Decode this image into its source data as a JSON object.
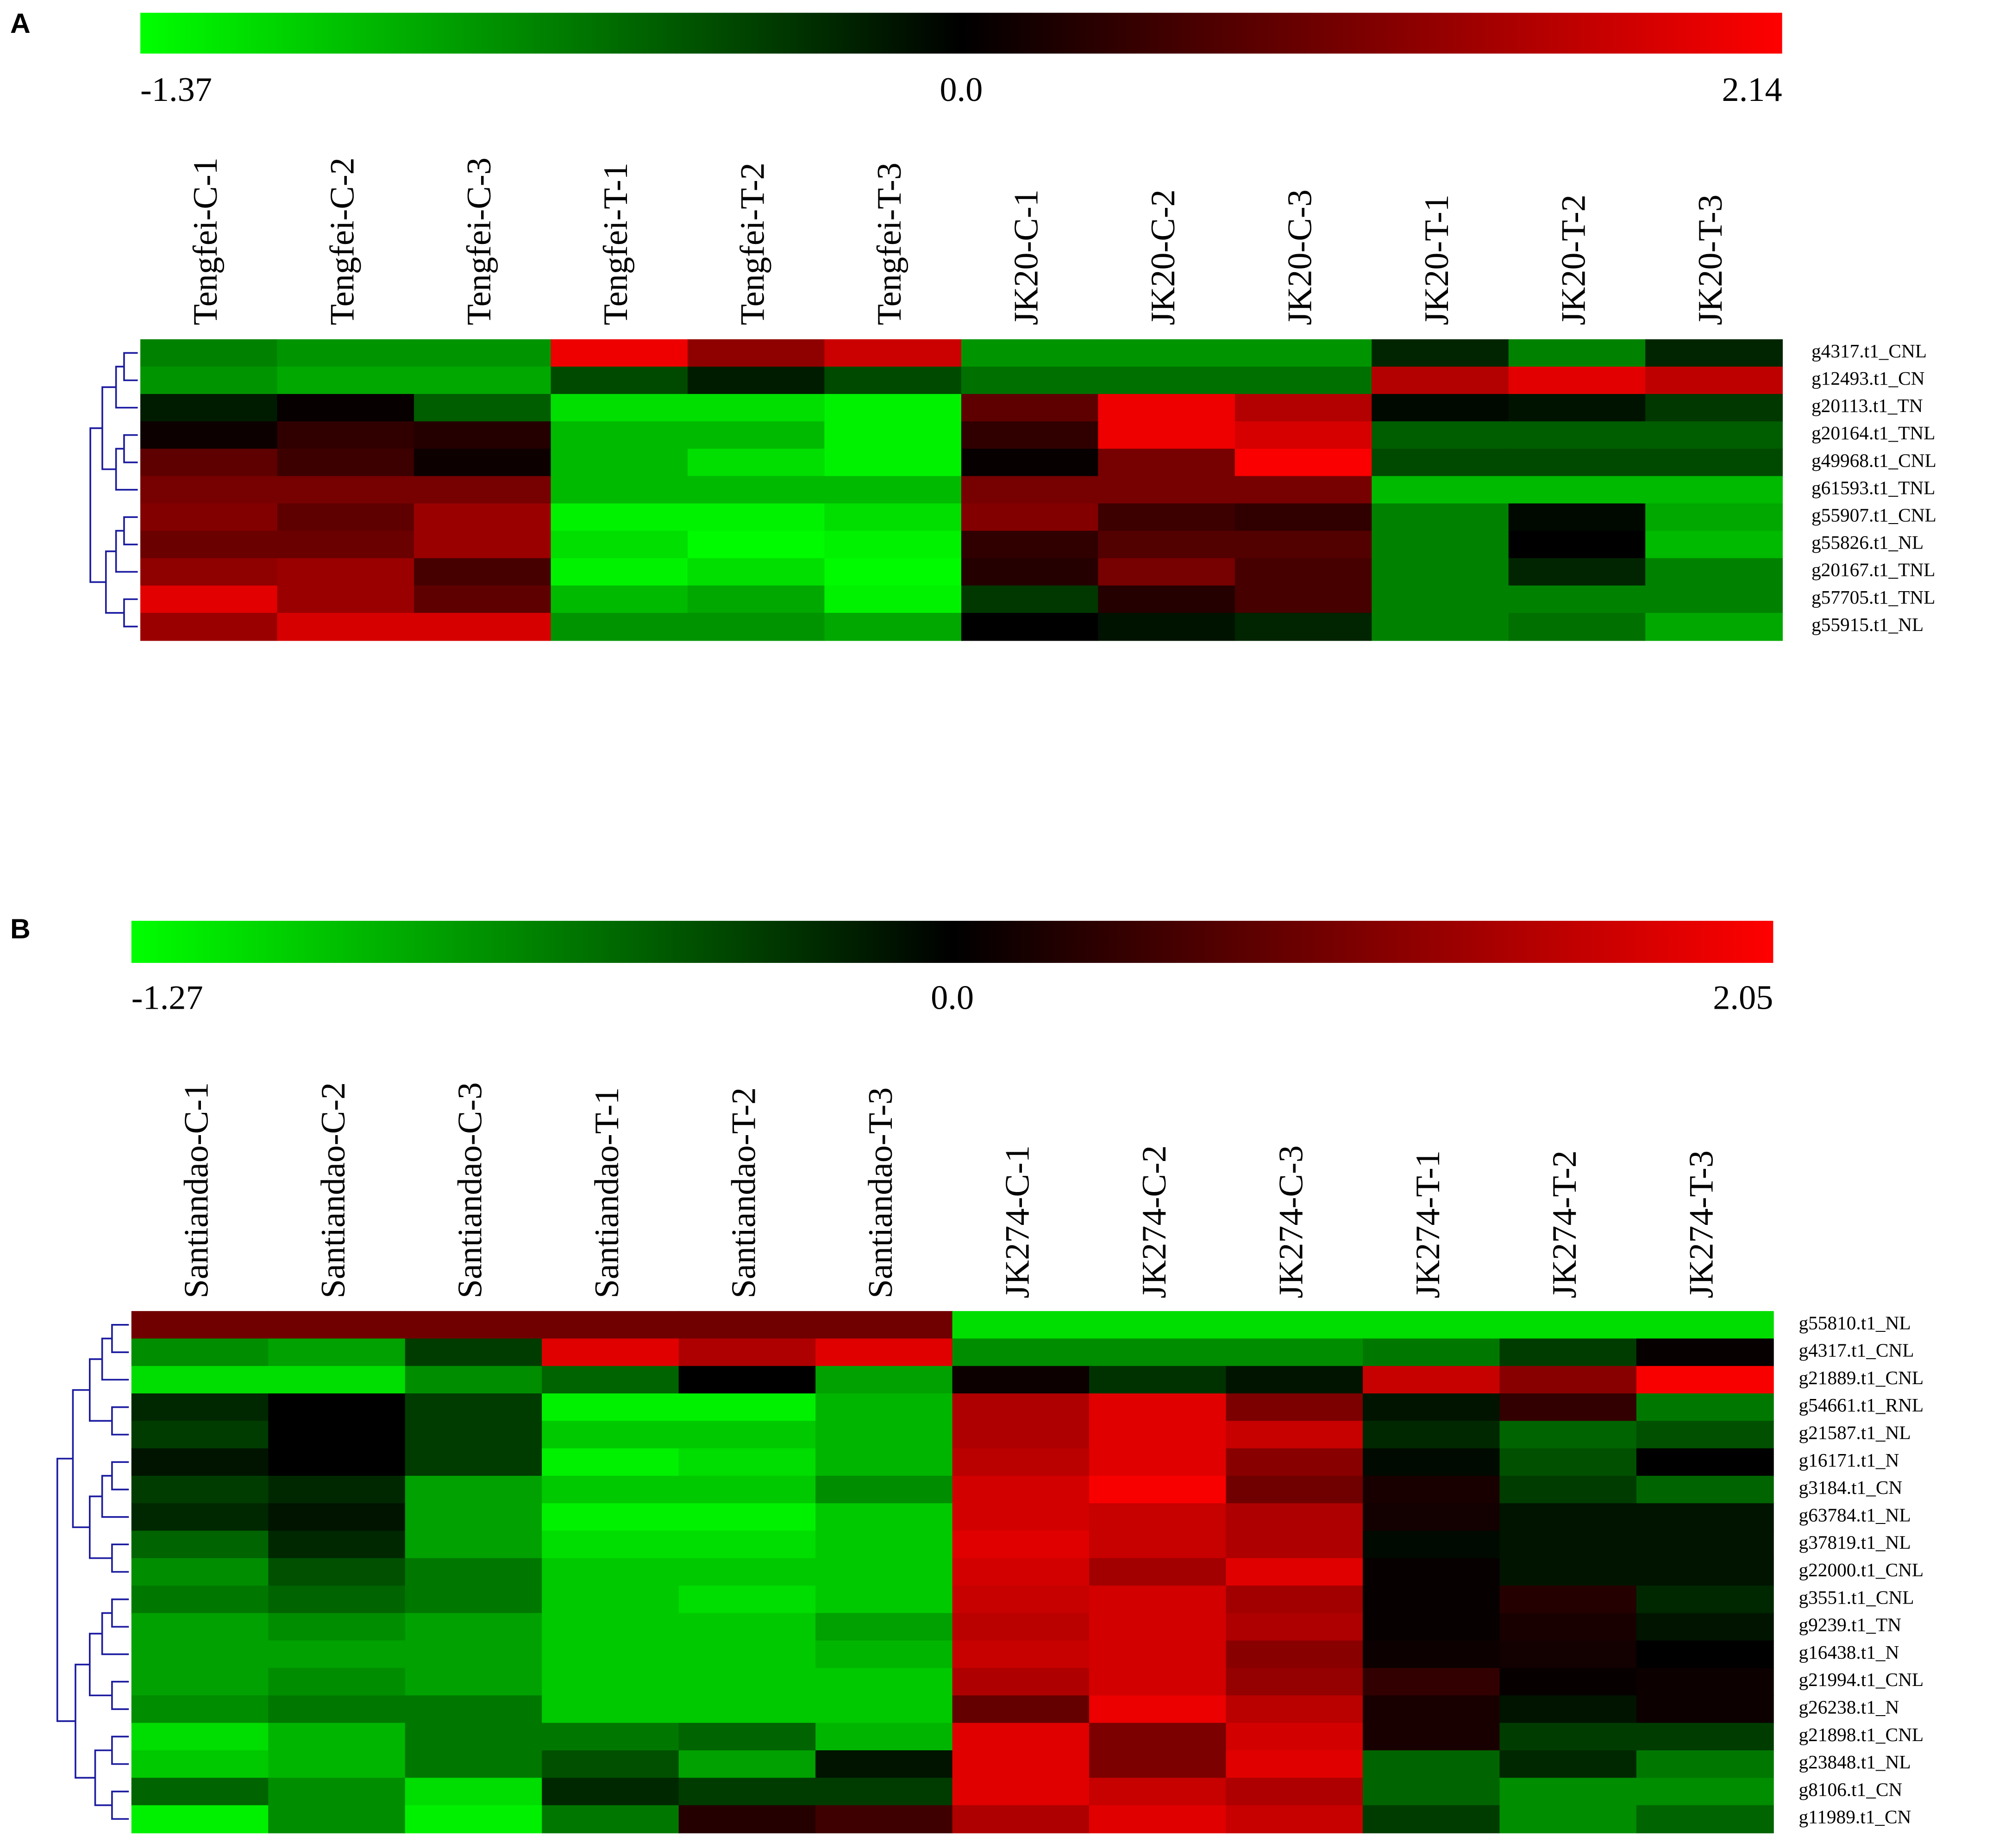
{
  "chart_data": [
    {
      "type": "heatmap",
      "panel_label": "A",
      "x_categories": [
        "Tengfei-C-1",
        "Tengfei-C-2",
        "Tengfei-C-3",
        "Tengfei-T-1",
        "Tengfei-T-2",
        "Tengfei-T-3",
        "JK20-C-1",
        "JK20-C-2",
        "JK20-C-3",
        "JK20-T-1",
        "JK20-T-2",
        "JK20-T-3"
      ],
      "y_categories": [
        "g4317.t1_CNL",
        "g12493.t1_CN",
        "g20113.t1_TN",
        "g20164.t1_TNL",
        "g49968.t1_CNL",
        "g61593.t1_TNL",
        "g55907.t1_CNL",
        "g55826.t1_NL",
        "g20167.t1_TNL",
        "g57705.t1_TNL",
        "g55915.t1_NL"
      ],
      "values": [
        [
          -0.7,
          -0.8,
          -0.8,
          2.0,
          1.2,
          1.7,
          -0.8,
          -0.8,
          -0.8,
          -0.2,
          -0.7,
          -0.2
        ],
        [
          -0.8,
          -0.9,
          -0.9,
          -0.4,
          -0.15,
          -0.4,
          -0.6,
          -0.6,
          -0.6,
          1.5,
          1.9,
          1.6
        ],
        [
          -0.15,
          0.05,
          -0.5,
          -1.2,
          -1.2,
          -1.3,
          0.8,
          2.0,
          1.5,
          -0.05,
          -0.1,
          -0.3
        ],
        [
          0.1,
          0.4,
          0.3,
          -1.0,
          -1.0,
          -1.3,
          0.4,
          2.0,
          1.8,
          -0.5,
          -0.5,
          -0.5
        ],
        [
          0.8,
          0.5,
          0.1,
          -1.0,
          -1.2,
          -1.3,
          0.05,
          1.0,
          2.1,
          -0.4,
          -0.4,
          -0.4
        ],
        [
          1.0,
          1.0,
          1.0,
          -1.0,
          -1.0,
          -1.0,
          1.0,
          1.0,
          1.0,
          -1.0,
          -1.0,
          -1.0
        ],
        [
          1.1,
          0.8,
          1.3,
          -1.3,
          -1.3,
          -1.2,
          1.1,
          0.5,
          0.4,
          -0.7,
          -0.05,
          -0.9
        ],
        [
          0.9,
          0.9,
          1.3,
          -1.2,
          -1.35,
          -1.3,
          0.4,
          0.7,
          0.7,
          -0.7,
          0.0,
          -1.0
        ],
        [
          1.2,
          1.3,
          0.6,
          -1.3,
          -1.2,
          -1.35,
          0.3,
          1.0,
          0.6,
          -0.7,
          -0.2,
          -0.7
        ],
        [
          1.9,
          1.3,
          0.8,
          -1.0,
          -0.9,
          -1.3,
          -0.3,
          0.3,
          0.6,
          -0.7,
          -0.7,
          -0.7
        ],
        [
          1.3,
          1.8,
          1.8,
          -0.8,
          -0.8,
          -0.9,
          0.0,
          -0.1,
          -0.2,
          -0.7,
          -0.6,
          -0.9
        ]
      ],
      "zlim": [
        -1.37,
        2.14
      ],
      "zticks": [
        -1.37,
        {
          "value": 0,
          "label": "0.0"
        },
        2.14
      ],
      "colormap": [
        "#00ff00",
        "#000000",
        "#ff0000"
      ]
    },
    {
      "type": "heatmap",
      "panel_label": "B",
      "x_categories": [
        "Santiandao-C-1",
        "Santiandao-C-2",
        "Santiandao-C-3",
        "Santiandao-T-1",
        "Santiandao-T-2",
        "Santiandao-T-3",
        "JK274-C-1",
        "JK274-C-2",
        "JK274-C-3",
        "JK274-T-1",
        "JK274-T-2",
        "JK274-T-3"
      ],
      "y_categories": [
        "g55810.t1_NL",
        "g4317.t1_CNL",
        "g21889.t1_CNL",
        "g54661.t1_RNL",
        "g21587.t1_NL",
        "g16171.t1_N",
        "g3184.t1_CN",
        "g63784.t1_NL",
        "g37819.t1_NL",
        "g22000.t1_CNL",
        "g3551.t1_CNL",
        "g9239.t1_TN",
        "g16438.t1_N",
        "g21994.t1_CNL",
        "g26238.t1_N",
        "g21898.t1_CNL",
        "g23848.t1_NL",
        "g8106.t1_CN",
        "g11989.t1_CN"
      ],
      "values": [
        [
          0.9,
          0.9,
          0.9,
          0.9,
          0.9,
          0.9,
          -1.1,
          -1.1,
          -1.1,
          -1.1,
          -1.1,
          -1.1
        ],
        [
          -0.7,
          -0.8,
          -0.3,
          1.8,
          1.4,
          1.8,
          -0.7,
          -0.7,
          -0.7,
          -0.6,
          -0.3,
          0.05
        ],
        [
          -1.1,
          -1.1,
          -0.7,
          -0.5,
          0.0,
          -0.8,
          0.1,
          -0.25,
          -0.1,
          1.6,
          1.1,
          2.0
        ],
        [
          -0.2,
          0.0,
          -0.3,
          -1.2,
          -1.2,
          -0.9,
          1.4,
          1.8,
          1.0,
          -0.1,
          0.4,
          -0.6
        ],
        [
          -0.3,
          0.0,
          -0.3,
          -1.0,
          -1.0,
          -0.9,
          1.4,
          1.8,
          1.6,
          -0.2,
          -0.5,
          -0.4
        ],
        [
          -0.1,
          0.0,
          -0.3,
          -1.2,
          -1.1,
          -0.9,
          1.5,
          1.8,
          1.1,
          -0.05,
          -0.4,
          0.0
        ],
        [
          -0.3,
          -0.2,
          -0.8,
          -1.0,
          -1.0,
          -0.7,
          1.7,
          2.0,
          0.9,
          0.2,
          -0.3,
          -0.5
        ],
        [
          -0.2,
          -0.1,
          -0.8,
          -1.2,
          -1.2,
          -1.0,
          1.7,
          1.6,
          1.4,
          0.15,
          -0.1,
          -0.1
        ],
        [
          -0.5,
          -0.2,
          -0.8,
          -1.1,
          -1.1,
          -1.0,
          1.8,
          1.6,
          1.4,
          -0.05,
          -0.1,
          -0.1
        ],
        [
          -0.7,
          -0.4,
          -0.6,
          -1.0,
          -1.0,
          -1.0,
          1.7,
          1.3,
          1.8,
          0.05,
          -0.1,
          -0.1
        ],
        [
          -0.6,
          -0.5,
          -0.6,
          -1.0,
          -1.1,
          -1.0,
          1.6,
          1.7,
          1.3,
          0.05,
          0.3,
          -0.2
        ],
        [
          -0.8,
          -0.7,
          -0.8,
          -1.0,
          -1.0,
          -0.8,
          1.5,
          1.7,
          1.4,
          0.05,
          0.2,
          -0.1
        ],
        [
          -0.8,
          -0.8,
          -0.8,
          -1.0,
          -1.0,
          -0.9,
          1.6,
          1.7,
          1.1,
          0.1,
          0.15,
          0.0
        ],
        [
          -0.8,
          -0.7,
          -0.8,
          -1.0,
          -1.0,
          -1.0,
          1.4,
          1.7,
          1.2,
          0.4,
          0.05,
          0.1
        ],
        [
          -0.7,
          -0.6,
          -0.6,
          -1.0,
          -1.0,
          -1.0,
          0.8,
          1.9,
          1.5,
          0.2,
          -0.1,
          0.1
        ],
        [
          -1.1,
          -0.9,
          -0.6,
          -0.6,
          -0.5,
          -0.9,
          1.8,
          1.0,
          1.7,
          0.2,
          -0.3,
          -0.3
        ],
        [
          -1.0,
          -0.9,
          -0.6,
          -0.4,
          -0.8,
          -0.1,
          1.8,
          1.0,
          1.8,
          -0.5,
          -0.2,
          -0.6
        ],
        [
          -0.5,
          -0.7,
          -1.1,
          -0.2,
          -0.3,
          -0.3,
          1.8,
          1.6,
          1.4,
          -0.5,
          -0.7,
          -0.7
        ],
        [
          -1.2,
          -0.7,
          -1.2,
          -0.6,
          0.3,
          0.5,
          1.4,
          1.8,
          1.6,
          -0.3,
          -0.7,
          -0.5
        ]
      ],
      "zlim": [
        -1.27,
        2.05
      ],
      "zticks": [
        -1.27,
        {
          "value": 0,
          "label": "0.0"
        },
        2.05
      ],
      "colormap": [
        "#00ff00",
        "#000000",
        "#ff0000"
      ]
    }
  ]
}
